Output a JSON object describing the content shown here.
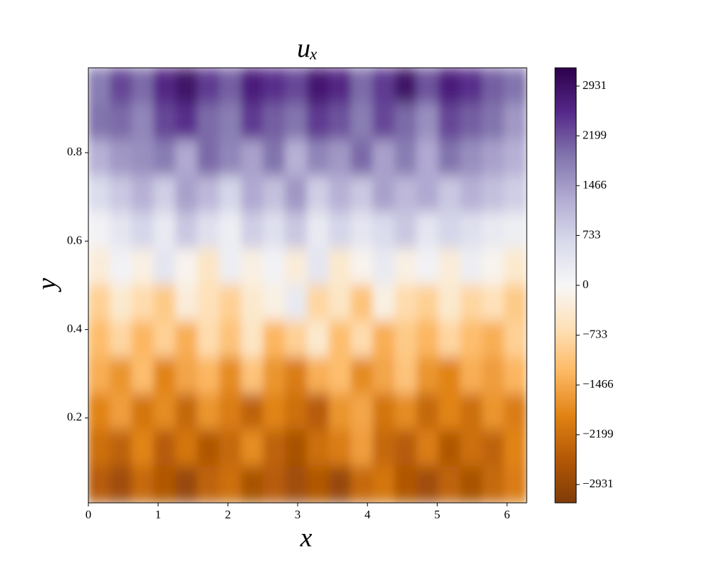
{
  "chart_data": {
    "type": "heatmap",
    "title": "uₓ",
    "x_label": "x",
    "y_label": "y",
    "xlim": [
      0,
      6.283
    ],
    "ylim": [
      0.008,
      0.992
    ],
    "xticks": [
      0,
      1,
      2,
      3,
      4,
      5,
      6
    ],
    "yticks": [
      0.2,
      0.4,
      0.6,
      0.8
    ],
    "clim": [
      -3200,
      3200
    ],
    "cticks": [
      {
        "value": -2931,
        "label": "−2931"
      },
      {
        "value": -2199,
        "label": "−2199"
      },
      {
        "value": -1466,
        "label": "−1466"
      },
      {
        "value": -733,
        "label": "−733"
      },
      0,
      733,
      1466,
      2199,
      2931
    ],
    "colormap": [
      "#7f3b08",
      "#b35806",
      "#e08214",
      "#fdb863",
      "#fee0b6",
      "#f7f7f7",
      "#d8daeb",
      "#b2abd2",
      "#8073ac",
      "#542788",
      "#2d004b"
    ],
    "z": [
      [
        1800,
        2300,
        2000,
        2600,
        2900,
        2400,
        2100,
        2700,
        2500,
        2300,
        2800,
        2600,
        2000,
        2400,
        2900,
        2200,
        2700,
        2500,
        2100,
        1900
      ],
      [
        1900,
        2000,
        1700,
        2300,
        2500,
        2000,
        1800,
        2400,
        2100,
        1900,
        2400,
        2200,
        1800,
        2300,
        2000,
        1600,
        2300,
        2100,
        1900,
        1500
      ],
      [
        1200,
        1500,
        1600,
        1800,
        1300,
        2000,
        1700,
        1400,
        1900,
        1200,
        1700,
        1500,
        2000,
        1400,
        1800,
        1300,
        1900,
        1600,
        1400,
        1200
      ],
      [
        600,
        900,
        1200,
        800,
        1400,
        1100,
        700,
        1300,
        1000,
        1500,
        800,
        1200,
        900,
        1400,
        1100,
        1300,
        900,
        1200,
        1000,
        800
      ],
      [
        100,
        400,
        700,
        300,
        900,
        500,
        200,
        800,
        500,
        900,
        300,
        700,
        400,
        600,
        900,
        400,
        700,
        500,
        300,
        200
      ],
      [
        -300,
        100,
        -200,
        400,
        -100,
        -500,
        200,
        -200,
        100,
        -300,
        400,
        -400,
        -100,
        300,
        -200,
        100,
        -300,
        200,
        -100,
        -400
      ],
      [
        -900,
        -400,
        -700,
        -1000,
        -300,
        -600,
        -900,
        -400,
        -200,
        300,
        -800,
        -500,
        -1100,
        -200,
        -700,
        -900,
        -400,
        -800,
        -600,
        -1000
      ],
      [
        -1200,
        -800,
        -1300,
        -900,
        -1400,
        -700,
        -1100,
        -500,
        -1300,
        -900,
        -400,
        -1200,
        -700,
        -1400,
        -1000,
        -1300,
        -800,
        -1200,
        -1400,
        -900
      ],
      [
        -1400,
        -1700,
        -1200,
        -1900,
        -1500,
        -1300,
        -1800,
        -1100,
        -1700,
        -2000,
        -1400,
        -1200,
        -1800,
        -1500,
        -1100,
        -1700,
        -1900,
        -1400,
        -1600,
        -1300
      ],
      [
        -1900,
        -1600,
        -2100,
        -1800,
        -2300,
        -1700,
        -2000,
        -2400,
        -1900,
        -2200,
        -2500,
        -1700,
        -1500,
        -2100,
        -1800,
        -2300,
        -1900,
        -2200,
        -1700,
        -2000
      ],
      [
        -2200,
        -2400,
        -1900,
        -2500,
        -2100,
        -2600,
        -2300,
        -1800,
        -2400,
        -2700,
        -2200,
        -2000,
        -1600,
        -2300,
        -2500,
        -2000,
        -2600,
        -2200,
        -2400,
        -1900
      ],
      [
        -2500,
        -2800,
        -2300,
        -2600,
        -2900,
        -2400,
        -2200,
        -2700,
        -2500,
        -2800,
        -2600,
        -2900,
        -2300,
        -2100,
        -2600,
        -2800,
        -2400,
        -2700,
        -2300,
        -2000
      ]
    ]
  }
}
